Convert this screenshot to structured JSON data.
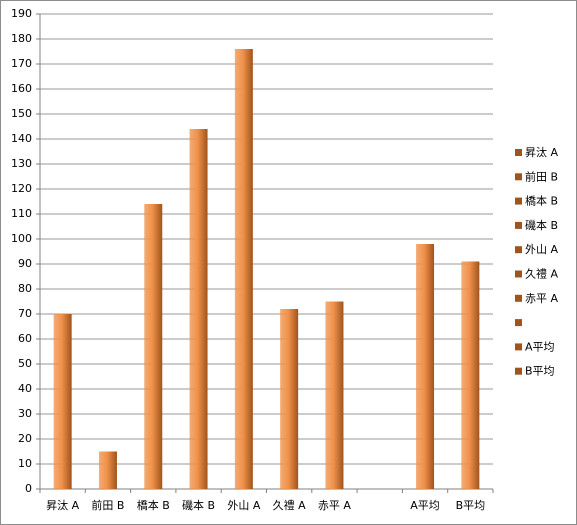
{
  "chart_data": {
    "type": "bar",
    "categories": [
      "昇汰 A",
      "前田 B",
      "橋本 B",
      "磯本 B",
      "外山 A",
      "久禮 A",
      "赤平 A",
      null,
      "A平均",
      "B平均"
    ],
    "values": [
      70,
      15,
      114,
      144,
      176,
      72,
      75,
      null,
      98,
      91
    ],
    "color": "#f0914a",
    "ylim": [
      0,
      190
    ],
    "yticks": [
      0,
      10,
      20,
      30,
      40,
      50,
      60,
      70,
      80,
      90,
      100,
      110,
      120,
      130,
      140,
      150,
      160,
      170,
      180,
      190
    ],
    "grid": true,
    "legend": "right"
  }
}
